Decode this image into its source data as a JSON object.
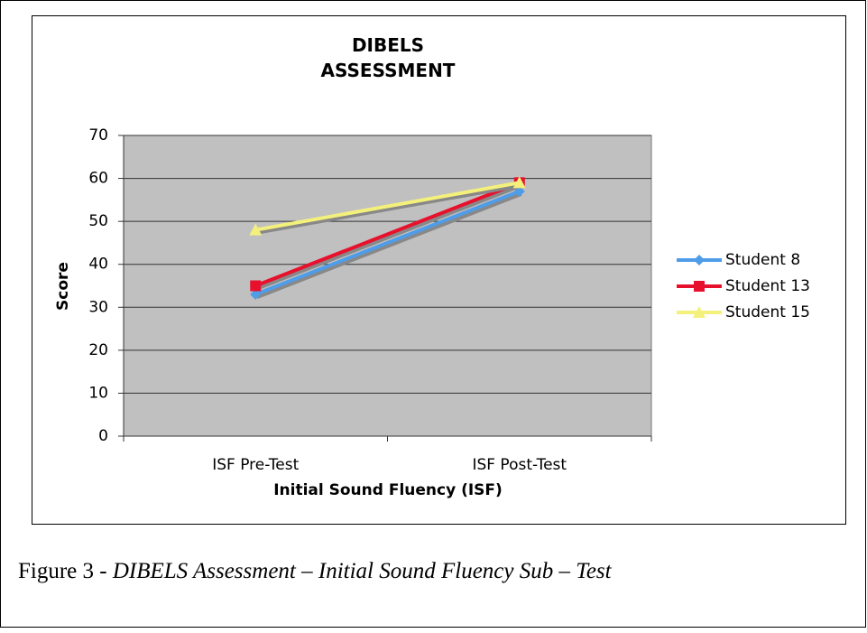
{
  "chart_data": {
    "type": "line",
    "title": "DIBELS ASSESSMENT",
    "x_label": "Initial Sound Fluency (ISF)",
    "y_label": "Score",
    "categories": [
      "ISF Pre-Test",
      "ISF Post-Test"
    ],
    "series": [
      {
        "name": "Student 8",
        "color": "#4f9ce8",
        "marker": "diamond",
        "values": [
          33,
          57
        ]
      },
      {
        "name": "Student 13",
        "color": "#e8112d",
        "marker": "square",
        "values": [
          35,
          59
        ]
      },
      {
        "name": "Student 15",
        "color": "#f4f07c",
        "marker": "triangle",
        "values": [
          48,
          59
        ]
      }
    ],
    "ylim": [
      0,
      70
    ],
    "yticks": [
      0,
      10,
      20,
      30,
      40,
      50,
      60,
      70
    ],
    "grid": true,
    "legend": "right"
  },
  "caption": {
    "label": "Figure 3 - ",
    "text": "DIBELS Assessment – Initial Sound Fluency Sub – Test"
  }
}
